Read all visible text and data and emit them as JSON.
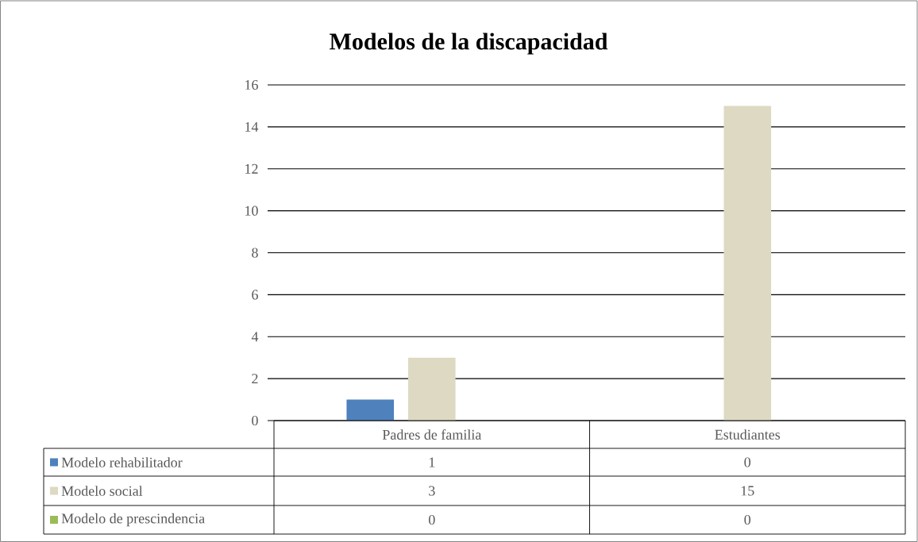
{
  "chart_data": {
    "type": "bar",
    "title": "Modelos de la discapacidad",
    "categories": [
      "Padres de familia",
      "Estudiantes"
    ],
    "series": [
      {
        "name": "Modelo rehabilitador",
        "color": "#4f81bd",
        "values": [
          1,
          0
        ]
      },
      {
        "name": "Modelo social",
        "color": "#ddd9c3",
        "values": [
          3,
          15
        ]
      },
      {
        "name": "Modelo de prescindencia",
        "color": "#9bbb59",
        "values": [
          0,
          0
        ]
      }
    ],
    "ylim": [
      0,
      16
    ],
    "yticks": [
      0,
      2,
      4,
      6,
      8,
      10,
      12,
      14,
      16
    ],
    "grid": "y",
    "legend": "bottom",
    "data_labels": true
  }
}
